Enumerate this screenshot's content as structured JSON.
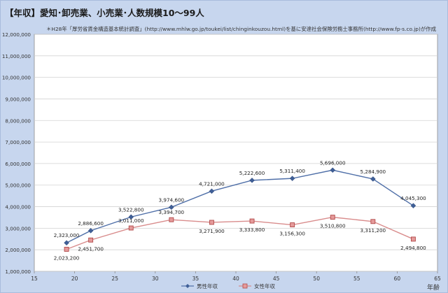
{
  "page": {
    "title": "【年収】愛知･卸売業、小売業･人数規模10～99人",
    "source_note": "＊H28年「厚労省賃金構造基本統計調査」(http://www.mhlw.go.jp/toukei/list/chinginkouzou.html)を基に安達社会保険労務士事務所(http://www.fp-s.co.jp)が作成"
  },
  "chart_data": {
    "type": "line",
    "xlabel": "年齢",
    "ylabel": "",
    "xlim": [
      15,
      65
    ],
    "ylim": [
      1000000,
      12000000
    ],
    "x_ticks": [
      15,
      20,
      25,
      30,
      35,
      40,
      45,
      50,
      55,
      60,
      65
    ],
    "y_ticks": [
      1000000,
      2000000,
      3000000,
      4000000,
      5000000,
      6000000,
      7000000,
      8000000,
      9000000,
      10000000,
      11000000,
      12000000
    ],
    "grid": "horizontal",
    "legend": "bottom",
    "series": [
      {
        "name": "男性年収",
        "color": "#4f6fa8",
        "marker": "diamond",
        "x": [
          19,
          22,
          27,
          32,
          37,
          42,
          47,
          52,
          57,
          62
        ],
        "values": [
          2323000,
          2886600,
          3522800,
          3974600,
          4721000,
          5222600,
          5311400,
          5696000,
          5284900,
          4045300
        ],
        "labels": [
          "2,323,000",
          "2,886,600",
          "3,522,800",
          "3,974,600",
          "4,721,000",
          "5,222,600",
          "5,311,400",
          "5,696,000",
          "5,284,900",
          "4,045,300"
        ]
      },
      {
        "name": "女性年収",
        "color": "#d98c8c",
        "marker": "square",
        "x": [
          19,
          22,
          27,
          32,
          37,
          42,
          47,
          52,
          57,
          62
        ],
        "values": [
          2023200,
          2451700,
          3011000,
          3394700,
          3271900,
          3333800,
          3156300,
          3510800,
          3311200,
          2494800
        ],
        "labels": [
          "2,023,200",
          "2,451,700",
          "3,011,000",
          "3,394,700",
          "3,271,900",
          "3,333,800",
          "3,156,300",
          "3,510,800",
          "3,311,200",
          "2,494,800"
        ]
      }
    ]
  }
}
